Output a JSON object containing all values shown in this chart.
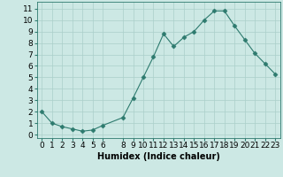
{
  "x": [
    0,
    1,
    2,
    3,
    4,
    5,
    6,
    8,
    9,
    10,
    11,
    12,
    13,
    14,
    15,
    16,
    17,
    18,
    19,
    20,
    21,
    22,
    23
  ],
  "y": [
    2.0,
    1.0,
    0.7,
    0.5,
    0.3,
    0.4,
    0.8,
    1.5,
    3.2,
    5.0,
    6.8,
    8.8,
    7.7,
    8.5,
    9.0,
    10.0,
    10.8,
    10.8,
    9.5,
    8.3,
    7.1,
    6.2,
    5.3
  ],
  "xlabel": "Humidex (Indice chaleur)",
  "xticks": [
    0,
    1,
    2,
    3,
    4,
    5,
    6,
    8,
    9,
    10,
    11,
    12,
    13,
    14,
    15,
    16,
    17,
    18,
    19,
    20,
    21,
    22,
    23
  ],
  "yticks": [
    0,
    1,
    2,
    3,
    4,
    5,
    6,
    7,
    8,
    9,
    10,
    11
  ],
  "ylim": [
    -0.3,
    11.6
  ],
  "xlim": [
    -0.5,
    23.5
  ],
  "line_color": "#2d7a6e",
  "marker": "D",
  "marker_size": 2.5,
  "bg_color": "#cce8e4",
  "grid_color": "#aacfca",
  "spine_color": "#2d7a6e",
  "xlabel_fontsize": 7,
  "tick_fontsize": 6.5
}
